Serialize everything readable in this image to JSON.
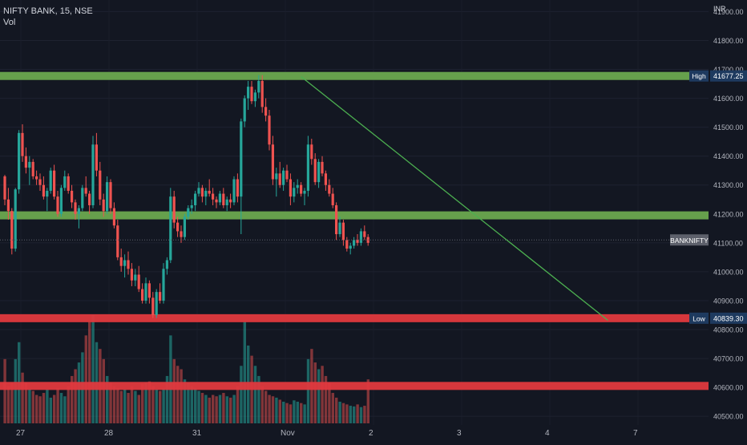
{
  "header": {
    "symbol_line": "NIFTY BANK, 15, NSE",
    "volume_label": "Vol",
    "currency": "INR"
  },
  "chart_data": {
    "type": "candlestick",
    "title": "NIFTY BANK, 15, NSE",
    "y_axis": {
      "ticks": [
        40500,
        40600,
        40700,
        40800,
        40900,
        41000,
        41100,
        41200,
        41300,
        41400,
        41500,
        41600,
        41700,
        41800,
        41900
      ],
      "tick_labels": [
        "40500.00",
        "40600.00",
        "40700.00",
        "40800.00",
        "40900.00",
        "41000.00",
        "41100.00",
        "41200.00",
        "41300.00",
        "41400.00",
        "41500.00",
        "41600.00",
        "41700.00",
        "41800.00",
        "41900.00"
      ],
      "range": [
        40470,
        41940
      ]
    },
    "x_axis": {
      "tick_labels": [
        "27",
        "28",
        "31",
        "Nov",
        "2",
        "3",
        "4",
        "7"
      ],
      "tick_index": [
        0,
        25,
        50,
        75,
        100,
        125,
        150,
        175
      ]
    },
    "levels": [
      {
        "label": "High",
        "value": 41677.25,
        "value_text": "41677.25",
        "color": "#6aa84f"
      },
      {
        "label": "",
        "value": 41195,
        "color": "#6aa84f"
      },
      {
        "label": "Low",
        "value": 40839.3,
        "value_text": "40839.30",
        "color": "#e0393e"
      },
      {
        "label": "",
        "value": 40605,
        "color": "#e0393e"
      }
    ],
    "last_price": {
      "label": "BANKNIFTY",
      "value": 41110
    },
    "trendline": {
      "from": {
        "index": 84,
        "value": 41675
      },
      "to": {
        "index": 171,
        "value": 40832
      },
      "color": "#4caf50"
    },
    "candles": [
      [
        41330,
        41335,
        41230,
        41250
      ],
      [
        41250,
        41290,
        41180,
        41210
      ],
      [
        41210,
        41220,
        41060,
        41080
      ],
      [
        41080,
        41290,
        41070,
        41285
      ],
      [
        41285,
        41490,
        41270,
        41480
      ],
      [
        41480,
        41510,
        41380,
        41400
      ],
      [
        41400,
        41430,
        41340,
        41360
      ],
      [
        41360,
        41400,
        41300,
        41380
      ],
      [
        41380,
        41390,
        41320,
        41330
      ],
      [
        41330,
        41350,
        41300,
        41320
      ],
      [
        41320,
        41340,
        41280,
        41300
      ],
      [
        41300,
        41330,
        41250,
        41260
      ],
      [
        41260,
        41290,
        41210,
        41280
      ],
      [
        41280,
        41360,
        41270,
        41350
      ],
      [
        41350,
        41370,
        41250,
        41260
      ],
      [
        41260,
        41280,
        41190,
        41200
      ],
      [
        41200,
        41300,
        41190,
        41290
      ],
      [
        41290,
        41350,
        41280,
        41330
      ],
      [
        41330,
        41340,
        41270,
        41280
      ],
      [
        41280,
        41300,
        41220,
        41240
      ],
      [
        41240,
        41250,
        41180,
        41200
      ],
      [
        41200,
        41230,
        41150,
        41220
      ],
      [
        41220,
        41300,
        41210,
        41290
      ],
      [
        41290,
        41330,
        41260,
        41270
      ],
      [
        41270,
        41280,
        41200,
        41230
      ],
      [
        41230,
        41470,
        41220,
        41440
      ],
      [
        41440,
        41480,
        41330,
        41350
      ],
      [
        41350,
        41380,
        41230,
        41250
      ],
      [
        41250,
        41270,
        41190,
        41210
      ],
      [
        41210,
        41330,
        41200,
        41310
      ],
      [
        41310,
        41320,
        41200,
        41220
      ],
      [
        41220,
        41240,
        41150,
        41160
      ],
      [
        41160,
        41180,
        41040,
        41050
      ],
      [
        41050,
        41080,
        41000,
        41020
      ],
      [
        41020,
        41060,
        40980,
        41040
      ],
      [
        41040,
        41070,
        40990,
        41010
      ],
      [
        41010,
        41030,
        40950,
        40970
      ],
      [
        40970,
        41010,
        40950,
        40990
      ],
      [
        40990,
        41020,
        40930,
        40940
      ],
      [
        40940,
        40960,
        40890,
        40900
      ],
      [
        40900,
        40980,
        40890,
        40960
      ],
      [
        40960,
        40970,
        40890,
        40910
      ],
      [
        40910,
        40930,
        40840,
        40850
      ],
      [
        40850,
        40940,
        40840,
        40930
      ],
      [
        40930,
        40960,
        40890,
        40900
      ],
      [
        40900,
        41030,
        40890,
        41010
      ],
      [
        41010,
        41050,
        40990,
        41040
      ],
      [
        41040,
        41290,
        41030,
        41260
      ],
      [
        41260,
        41280,
        41150,
        41170
      ],
      [
        41170,
        41190,
        41120,
        41140
      ],
      [
        41140,
        41160,
        41100,
        41120
      ],
      [
        41120,
        41200,
        41110,
        41190
      ],
      [
        41190,
        41230,
        41180,
        41220
      ],
      [
        41220,
        41250,
        41200,
        41230
      ],
      [
        41230,
        41280,
        41210,
        41270
      ],
      [
        41270,
        41310,
        41260,
        41290
      ],
      [
        41290,
        41300,
        41240,
        41260
      ],
      [
        41260,
        41290,
        41230,
        41280
      ],
      [
        41280,
        41320,
        41260,
        41270
      ],
      [
        41270,
        41290,
        41230,
        41250
      ],
      [
        41250,
        41260,
        41220,
        41240
      ],
      [
        41240,
        41280,
        41230,
        41270
      ],
      [
        41270,
        41290,
        41220,
        41230
      ],
      [
        41230,
        41260,
        41210,
        41250
      ],
      [
        41250,
        41270,
        41220,
        41240
      ],
      [
        41240,
        41330,
        41230,
        41320
      ],
      [
        41320,
        41340,
        41240,
        41260
      ],
      [
        41260,
        41530,
        41130,
        41520
      ],
      [
        41520,
        41610,
        41500,
        41600
      ],
      [
        41600,
        41660,
        41560,
        41640
      ],
      [
        41640,
        41660,
        41580,
        41590
      ],
      [
        41590,
        41630,
        41570,
        41620
      ],
      [
        41620,
        41680,
        41600,
        41660
      ],
      [
        41660,
        41680,
        41550,
        41570
      ],
      [
        41570,
        41600,
        41520,
        41540
      ],
      [
        41540,
        41560,
        41420,
        41440
      ],
      [
        41440,
        41470,
        41300,
        41320
      ],
      [
        41320,
        41360,
        41260,
        41340
      ],
      [
        41340,
        41380,
        41290,
        41300
      ],
      [
        41300,
        41360,
        41280,
        41350
      ],
      [
        41350,
        41370,
        41310,
        41320
      ],
      [
        41320,
        41340,
        41230,
        41260
      ],
      [
        41260,
        41310,
        41240,
        41290
      ],
      [
        41290,
        41320,
        41270,
        41300
      ],
      [
        41300,
        41310,
        41260,
        41270
      ],
      [
        41270,
        41290,
        41230,
        41280
      ],
      [
        41280,
        41470,
        41260,
        41440
      ],
      [
        41440,
        41460,
        41370,
        41390
      ],
      [
        41390,
        41410,
        41300,
        41310
      ],
      [
        41310,
        41390,
        41290,
        41380
      ],
      [
        41380,
        41400,
        41330,
        41340
      ],
      [
        41340,
        41350,
        41280,
        41300
      ],
      [
        41300,
        41320,
        41260,
        41270
      ],
      [
        41270,
        41290,
        41220,
        41230
      ],
      [
        41230,
        41240,
        41110,
        41130
      ],
      [
        41130,
        41190,
        41120,
        41170
      ],
      [
        41170,
        41180,
        41090,
        41110
      ],
      [
        41110,
        41120,
        41070,
        41080
      ],
      [
        41080,
        41100,
        41060,
        41090
      ],
      [
        41090,
        41120,
        41080,
        41110
      ],
      [
        41110,
        41130,
        41090,
        41100
      ],
      [
        41100,
        41150,
        41090,
        41140
      ],
      [
        41140,
        41160,
        41110,
        41120
      ],
      [
        41120,
        41130,
        41090,
        41100
      ]
    ],
    "volumes": [
      95,
      55,
      60,
      95,
      120,
      75,
      60,
      50,
      48,
      42,
      40,
      45,
      50,
      38,
      42,
      52,
      45,
      40,
      55,
      70,
      80,
      90,
      105,
      130,
      150,
      160,
      120,
      110,
      95,
      70,
      60,
      55,
      52,
      48,
      50,
      45,
      55,
      48,
      42,
      58,
      60,
      62,
      55,
      50,
      48,
      52,
      70,
      130,
      95,
      85,
      80,
      65,
      60,
      55,
      52,
      48,
      45,
      42,
      38,
      42,
      40,
      42,
      45,
      40,
      38,
      42,
      55,
      85,
      150,
      115,
      100,
      85,
      70,
      55,
      48,
      42,
      40,
      38,
      35,
      32,
      30,
      28,
      34,
      32,
      30,
      28,
      95,
      110,
      90,
      80,
      85,
      70,
      60,
      45,
      38,
      32,
      30,
      28,
      26,
      25,
      28,
      24,
      26,
      65
    ],
    "volume_colors": [
      "r",
      "r",
      "r",
      "g",
      "g",
      "r",
      "r",
      "g",
      "r",
      "r",
      "r",
      "r",
      "g",
      "g",
      "r",
      "r",
      "g",
      "g",
      "r",
      "r",
      "r",
      "g",
      "g",
      "r",
      "r",
      "g",
      "g",
      "r",
      "r",
      "g",
      "r",
      "r",
      "r",
      "r",
      "g",
      "r",
      "r",
      "g",
      "r",
      "r",
      "g",
      "r",
      "r",
      "g",
      "r",
      "g",
      "g",
      "g",
      "r",
      "r",
      "r",
      "g",
      "g",
      "g",
      "g",
      "g",
      "r",
      "g",
      "r",
      "r",
      "r",
      "g",
      "r",
      "g",
      "r",
      "g",
      "r",
      "g",
      "g",
      "g",
      "r",
      "g",
      "g",
      "r",
      "r",
      "r",
      "r",
      "g",
      "r",
      "g",
      "r",
      "r",
      "g",
      "g",
      "r",
      "g",
      "g",
      "r",
      "r",
      "g",
      "r",
      "r",
      "r",
      "r",
      "r",
      "g",
      "r",
      "r",
      "g",
      "g",
      "r",
      "g",
      "r",
      "r"
    ]
  }
}
